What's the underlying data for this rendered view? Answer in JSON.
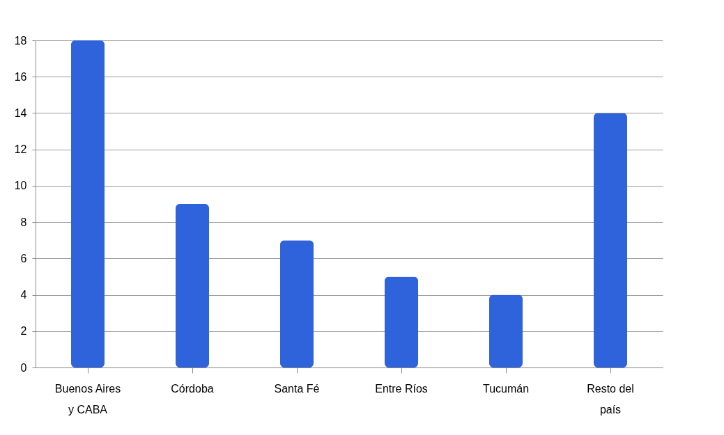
{
  "chart_data": {
    "type": "bar",
    "categories": [
      "Buenos Aires y CABA",
      "Córdoba",
      "Santa Fé",
      "Entre Ríos",
      "Tucumán",
      "Resto del país"
    ],
    "values": [
      18,
      9,
      7,
      5,
      4,
      14
    ],
    "color": "#2f63dc",
    "ylim": [
      0,
      18
    ],
    "yticks": [
      0,
      2,
      4,
      6,
      8,
      10,
      12,
      14,
      16,
      18
    ],
    "grid": "y"
  }
}
